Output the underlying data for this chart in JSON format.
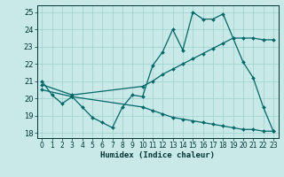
{
  "xlabel": "Humidex (Indice chaleur)",
  "bg_color": "#c9e9e9",
  "line_color": "#006666",
  "ylim": [
    17.7,
    25.4
  ],
  "xlim": [
    -0.5,
    23.5
  ],
  "yticks": [
    18,
    19,
    20,
    21,
    22,
    23,
    24,
    25
  ],
  "xticks": [
    0,
    1,
    2,
    3,
    4,
    5,
    6,
    7,
    8,
    9,
    10,
    11,
    12,
    13,
    14,
    15,
    16,
    17,
    18,
    19,
    20,
    21,
    22,
    23
  ],
  "line1_x": [
    0,
    1,
    2,
    3,
    4,
    5,
    6,
    7,
    8,
    9,
    10,
    11,
    12,
    13,
    14,
    15,
    16,
    17,
    18,
    19,
    20,
    21,
    22,
    23
  ],
  "line1_y": [
    21.0,
    20.2,
    19.7,
    20.1,
    19.5,
    18.9,
    18.6,
    18.3,
    19.5,
    20.2,
    20.1,
    21.9,
    22.7,
    24.0,
    22.8,
    25.0,
    24.6,
    24.6,
    24.9,
    23.5,
    22.1,
    21.2,
    19.5,
    18.1
  ],
  "line2_x": [
    0,
    3,
    10,
    11,
    12,
    13,
    14,
    15,
    16,
    17,
    18,
    19,
    20,
    21,
    22,
    23
  ],
  "line2_y": [
    20.8,
    20.2,
    20.7,
    21.0,
    21.4,
    21.7,
    22.0,
    22.3,
    22.6,
    22.9,
    23.2,
    23.5,
    23.5,
    23.5,
    23.4,
    23.4
  ],
  "line3_x": [
    0,
    3,
    10,
    11,
    12,
    13,
    14,
    15,
    16,
    17,
    18,
    19,
    20,
    21,
    22,
    23
  ],
  "line3_y": [
    20.5,
    20.1,
    19.5,
    19.3,
    19.1,
    18.9,
    18.8,
    18.7,
    18.6,
    18.5,
    18.4,
    18.3,
    18.2,
    18.2,
    18.1,
    18.1
  ]
}
